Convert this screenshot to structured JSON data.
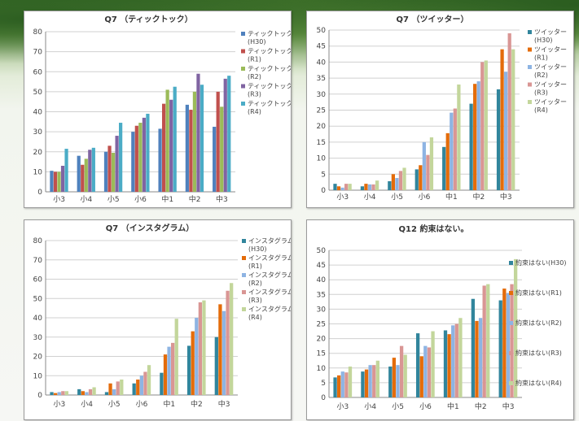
{
  "chart_data": [
    {
      "type": "bar",
      "title": "Q7 （ティックトック）",
      "categories": [
        "小3",
        "小4",
        "小5",
        "小6",
        "中1",
        "中2",
        "中3"
      ],
      "ylim": [
        0,
        80
      ],
      "yticks": [
        0,
        10,
        20,
        30,
        40,
        50,
        60,
        70,
        80
      ],
      "legend_position": "right",
      "grid": true,
      "series": [
        {
          "name": "ティックトック(H30)",
          "color": "#4f81bd",
          "values": [
            10.5,
            18,
            20,
            30,
            31.5,
            43.5,
            32.5
          ]
        },
        {
          "name": "ティックトック(R1)",
          "color": "#c0504d",
          "values": [
            10,
            13.5,
            23,
            33,
            44,
            41,
            50
          ]
        },
        {
          "name": "ティックトック(R2)",
          "color": "#9bbb59",
          "values": [
            10,
            16.5,
            19.5,
            34.5,
            51,
            50,
            42.5
          ]
        },
        {
          "name": "ティックトック(R3)",
          "color": "#8064a2",
          "values": [
            13,
            21,
            28,
            37,
            46,
            59,
            56.5
          ]
        },
        {
          "name": "ティックトック(R4)",
          "color": "#4bacc6",
          "values": [
            21.5,
            22,
            34.5,
            39,
            52.5,
            53.5,
            58
          ]
        }
      ]
    },
    {
      "type": "bar",
      "title": "Q7 （ツイッター）",
      "categories": [
        "小3",
        "小4",
        "小5",
        "小6",
        "中1",
        "中2",
        "中3"
      ],
      "ylim": [
        0,
        50
      ],
      "yticks": [
        0,
        5,
        10,
        15,
        20,
        25,
        30,
        35,
        40,
        45,
        50
      ],
      "legend_position": "right",
      "grid": true,
      "series": [
        {
          "name": "ツイッター(H30)",
          "color": "#31859c",
          "values": [
            2,
            1.2,
            2.8,
            6.5,
            13.5,
            27,
            31.5
          ]
        },
        {
          "name": "ツイッター(R1)",
          "color": "#e46c0a",
          "values": [
            1.2,
            2,
            5,
            7.8,
            17.8,
            33.2,
            44
          ]
        },
        {
          "name": "ツイッター(R2)",
          "color": "#8eb4e3",
          "values": [
            0.8,
            1.8,
            3.8,
            15,
            24.2,
            34,
            37
          ]
        },
        {
          "name": "ツイッター(R3)",
          "color": "#d99694",
          "values": [
            2,
            1.8,
            6,
            11,
            25.5,
            40,
            49
          ]
        },
        {
          "name": "ツイッター(R4)",
          "color": "#c3d69b",
          "values": [
            2,
            3,
            7,
            16.5,
            33,
            40.5,
            44
          ]
        }
      ]
    },
    {
      "type": "bar",
      "title": "Q7 （インスタグラム）",
      "categories": [
        "小3",
        "小4",
        "小5",
        "小6",
        "中1",
        "中2",
        "中3"
      ],
      "ylim": [
        0,
        80
      ],
      "yticks": [
        0,
        10,
        20,
        30,
        40,
        50,
        60,
        70,
        80
      ],
      "legend_position": "right",
      "grid": true,
      "series": [
        {
          "name": "インスタグラム(H30)",
          "color": "#31859c",
          "values": [
            1.5,
            3,
            1.5,
            6,
            11.5,
            25.5,
            30
          ]
        },
        {
          "name": "インスタグラム(R1)",
          "color": "#e46c0a",
          "values": [
            1,
            2,
            6,
            8,
            21,
            33,
            47
          ]
        },
        {
          "name": "インスタグラム(R2)",
          "color": "#8eb4e3",
          "values": [
            1.5,
            1.5,
            3,
            10,
            25,
            40,
            43.5
          ]
        },
        {
          "name": "インスタグラム(R3)",
          "color": "#d99694",
          "values": [
            2,
            3,
            7,
            12,
            27,
            48,
            54
          ]
        },
        {
          "name": "インスタグラム(R4)",
          "color": "#c3d69b",
          "values": [
            2,
            4,
            8,
            15.5,
            39.5,
            49,
            58
          ]
        }
      ]
    },
    {
      "type": "bar",
      "title": "Q12 約束はない。",
      "categories": [
        "小3",
        "小4",
        "小5",
        "小6",
        "中1",
        "中2",
        "中3"
      ],
      "ylim": [
        0,
        50
      ],
      "yticks": [
        0,
        5,
        10,
        15,
        20,
        25,
        30,
        35,
        40,
        45,
        50
      ],
      "legend_position": "right",
      "grid": true,
      "series": [
        {
          "name": "約束はない(H30)",
          "color": "#31859c",
          "values": [
            6.8,
            8.8,
            10.5,
            21.8,
            22.8,
            33.5,
            33
          ]
        },
        {
          "name": "約束はない(R1)",
          "color": "#e46c0a",
          "values": [
            7.5,
            9.5,
            13.5,
            14,
            21.5,
            26,
            37
          ]
        },
        {
          "name": "約束はない(R2)",
          "color": "#8eb4e3",
          "values": [
            8.8,
            11,
            11,
            17.5,
            24.5,
            27,
            35.5
          ]
        },
        {
          "name": "約束はない(R3)",
          "color": "#d99694",
          "values": [
            8.5,
            11,
            17.5,
            17,
            25,
            38,
            38.5
          ]
        },
        {
          "name": "約束はない(R4)",
          "color": "#c3d69b",
          "values": [
            10.5,
            12.5,
            14.5,
            22.5,
            27,
            38.5,
            47
          ]
        }
      ]
    }
  ],
  "legend_labels": [
    [
      [
        "ティックトック",
        "(H30)"
      ],
      [
        "ティックトック",
        "(R1)"
      ],
      [
        "ティックトック",
        "(R2)"
      ],
      [
        "ティックトック",
        "(R3)"
      ],
      [
        "ティックトック",
        "(R4)"
      ]
    ],
    [
      [
        "ツイッター",
        "(H30)"
      ],
      [
        "ツイッター",
        "(R1)"
      ],
      [
        "ツイッター",
        "(R2)"
      ],
      [
        "ツイッター",
        "(R3)"
      ],
      [
        "ツイッター",
        "(R4)"
      ]
    ],
    [
      [
        "インスタグラム",
        "(H30)"
      ],
      [
        "インスタグラム",
        "(R1)"
      ],
      [
        "インスタグラム",
        "(R2)"
      ],
      [
        "インスタグラム",
        "(R3)"
      ],
      [
        "インスタグラム",
        "(R4)"
      ]
    ],
    [
      [
        "約束はない(H30)"
      ],
      [
        "約束はない(R1)"
      ],
      [
        "約束はない(R2)"
      ],
      [
        "約束はない(R3)"
      ],
      [
        "約束はない(R4)"
      ]
    ]
  ]
}
